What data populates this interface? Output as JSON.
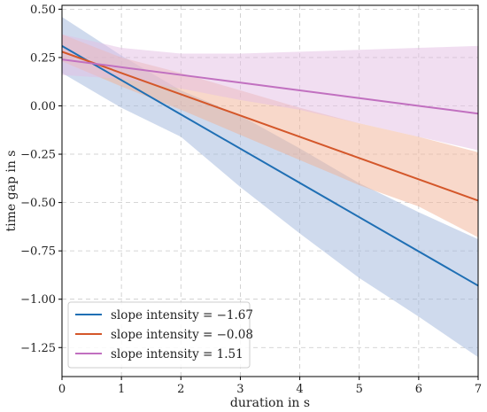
{
  "chart_data": {
    "type": "line",
    "xlabel": "duration in s",
    "ylabel": "time gap in s",
    "xlim": [
      0,
      7
    ],
    "ylim": [
      -1.4,
      0.52
    ],
    "x_ticks": [
      0,
      1,
      2,
      3,
      4,
      5,
      6,
      7
    ],
    "y_ticks": [
      -1.25,
      -1.0,
      -0.75,
      -0.5,
      -0.25,
      0.0,
      0.25,
      0.5
    ],
    "y_tick_labels": [
      "−1.25",
      "−1.00",
      "−0.75",
      "−0.50",
      "−0.25",
      "0.00",
      "0.25",
      "0.50"
    ],
    "grid": true,
    "legend_position": "lower-left",
    "series": [
      {
        "name": "slope intensity = −1.67",
        "color": "#1f6fb4",
        "band_color": "#9fb5dc",
        "x": [
          0,
          7
        ],
        "y": [
          0.31,
          -0.93
        ],
        "ci_x": [
          0,
          1,
          2,
          3,
          4,
          5,
          6,
          7
        ],
        "ci_lower": [
          0.17,
          -0.01,
          -0.16,
          -0.42,
          -0.66,
          -0.89,
          -1.09,
          -1.3
        ],
        "ci_upper": [
          0.46,
          0.26,
          0.08,
          -0.05,
          -0.22,
          -0.4,
          -0.55,
          -0.69
        ]
      },
      {
        "name": "slope intensity = −0.08",
        "color": "#d4572a",
        "band_color": "#f2b295",
        "x": [
          0,
          7
        ],
        "y": [
          0.28,
          -0.49
        ],
        "ci_x": [
          0,
          1,
          2,
          3,
          4,
          5,
          6,
          7
        ],
        "ci_lower": [
          0.23,
          0.1,
          -0.02,
          -0.15,
          -0.28,
          -0.41,
          -0.52,
          -0.68
        ],
        "ci_upper": [
          0.37,
          0.25,
          0.17,
          0.08,
          -0.01,
          -0.09,
          -0.16,
          -0.24
        ]
      },
      {
        "name": "slope intensity = 1.51",
        "color": "#c170c0",
        "band_color": "#e3bde3",
        "x": [
          0,
          1,
          2,
          3,
          4,
          5,
          6,
          7
        ],
        "y": [
          0.24,
          0.2,
          0.16,
          0.12,
          0.08,
          0.04,
          0.0,
          -0.04
        ],
        "ci_x": [
          0,
          1,
          2,
          3,
          4,
          5,
          6,
          7
        ],
        "ci_lower": [
          0.16,
          0.14,
          0.09,
          0.03,
          -0.02,
          -0.09,
          -0.16,
          -0.23
        ],
        "ci_upper": [
          0.37,
          0.3,
          0.27,
          0.27,
          0.28,
          0.29,
          0.3,
          0.31
        ]
      }
    ]
  }
}
